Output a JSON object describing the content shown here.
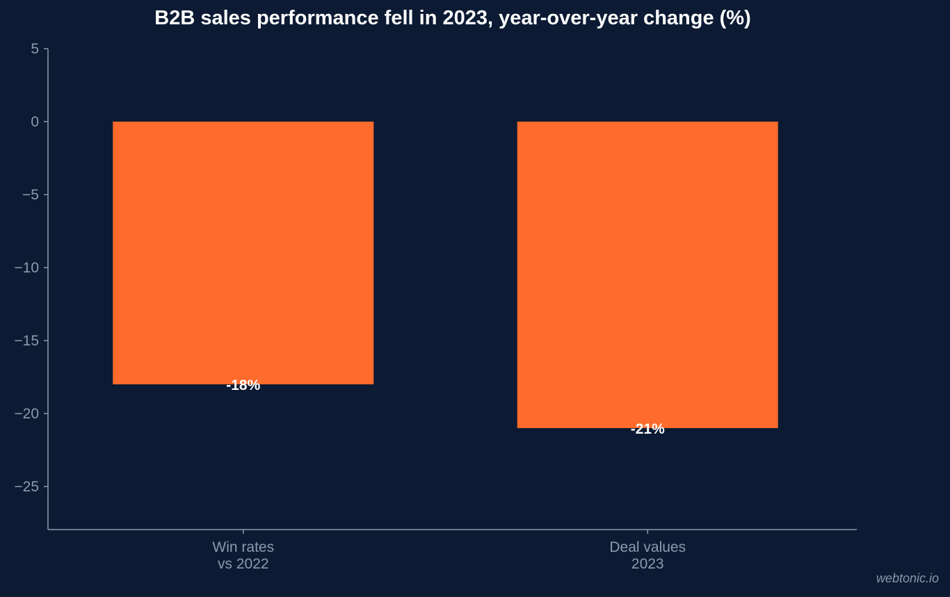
{
  "chart_data": {
    "type": "bar",
    "title": "B2B sales performance fell in 2023, year-over-year change (%)",
    "categories": [
      [
        "Win rates",
        "vs 2022"
      ],
      [
        "Deal values",
        "2023"
      ]
    ],
    "values": [
      -18,
      -21
    ],
    "data_labels": [
      "-18%",
      "-21%"
    ],
    "y_ticks": [
      5,
      0,
      -5,
      -10,
      -15,
      -20,
      -25
    ],
    "y_tick_labels": [
      "5",
      "0",
      "−5",
      "−10",
      "−15",
      "−20",
      "−25"
    ],
    "ylim": [
      -28,
      5
    ],
    "xlabel": "",
    "ylabel": "",
    "grid": false,
    "bar_color": "#ff6b2c"
  },
  "colors": {
    "background": "#0c1b33",
    "axis": "#8d99ad",
    "bar": "#ff6b2c",
    "label": "#ffffff"
  },
  "watermark": "webtonic.io"
}
